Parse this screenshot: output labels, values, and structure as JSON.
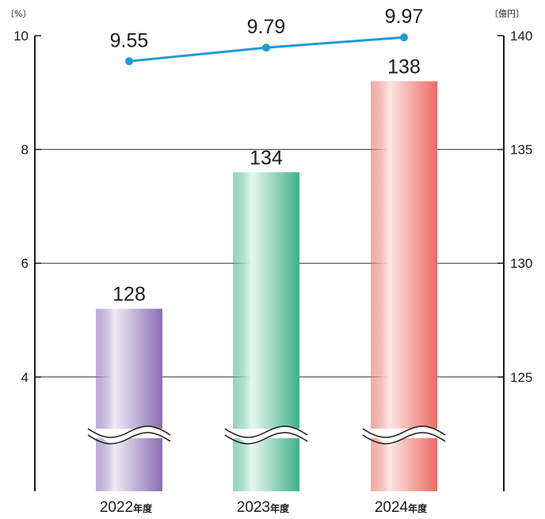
{
  "chart_data": {
    "type": "bar+line",
    "left_unit": "〔%〕",
    "right_unit": "〔億円〕",
    "categories": [
      {
        "year": "2022",
        "suffix": "年度"
      },
      {
        "year": "2023",
        "suffix": "年度"
      },
      {
        "year": "2024",
        "suffix": "年度"
      }
    ],
    "bars": {
      "axis": "right",
      "values": [
        128,
        134,
        138
      ],
      "labels": [
        "128",
        "134",
        "138"
      ],
      "colors": [
        {
          "light": "#efebf6",
          "dark": "#8a6db0"
        },
        {
          "light": "#eaf6f0",
          "dark": "#3fb289"
        },
        {
          "light": "#fbe6e2",
          "dark": "#ec6a66"
        }
      ],
      "axis_break": true
    },
    "line": {
      "axis": "left",
      "values": [
        9.55,
        9.79,
        9.97
      ],
      "labels": [
        "9.55",
        "9.79",
        "9.97"
      ],
      "color": "#1e9ad6"
    },
    "left_axis": {
      "ylim": [
        2.0,
        10
      ],
      "ticks": [
        "4",
        "6",
        "8",
        "10"
      ]
    },
    "right_axis": {
      "ylim": [
        120,
        140
      ],
      "ticks": [
        "125",
        "130",
        "135",
        "140"
      ]
    },
    "grid": true
  }
}
